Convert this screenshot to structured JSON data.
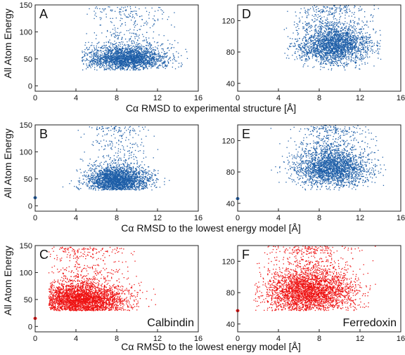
{
  "colors": {
    "blue": "#1f5fa8",
    "red": "#ee1111",
    "axis": "#222222"
  },
  "figure": {
    "ylabel": "All Atom Energy",
    "row_xlabels": [
      "Cα RMSD to experimental structure [Å]",
      "Cα RMSD to the lowest energy model [Å]",
      "Cα RMSD to the lowest energy model [Å]"
    ],
    "protein_labels": {
      "left": "Calbindin",
      "right": "Ferredoxin"
    }
  },
  "chart_data": [
    {
      "panel": "A",
      "type": "scatter",
      "color": "blue",
      "xlim": [
        0,
        16
      ],
      "ylim": [
        -10,
        150
      ],
      "xticks": [
        0,
        4,
        8,
        12,
        16
      ],
      "yticks": [
        0,
        50,
        100,
        150
      ],
      "cloud": {
        "x_center": 9.0,
        "x_sd": 1.9,
        "x_range": [
          4.5,
          15.5
        ],
        "y_base": 42,
        "y_spread": 22,
        "y_tail_max": 148,
        "n": 2600
      },
      "reference_point": null,
      "protein_label": null
    },
    {
      "panel": "D",
      "type": "scatter",
      "color": "blue",
      "xlim": [
        0,
        16
      ],
      "ylim": [
        30,
        140
      ],
      "xticks": [
        0,
        4,
        8,
        12,
        16
      ],
      "yticks": [
        40,
        80,
        120
      ],
      "cloud": {
        "x_center": 9.5,
        "x_sd": 1.8,
        "x_range": [
          4.5,
          14
        ],
        "y_base": 78,
        "y_spread": 26,
        "y_tail_max": 140,
        "n": 2600
      },
      "reference_point": null,
      "protein_label": null
    },
    {
      "panel": "B",
      "type": "scatter",
      "color": "blue",
      "xlim": [
        0,
        16
      ],
      "ylim": [
        -10,
        150
      ],
      "xticks": [
        0,
        4,
        8,
        12,
        16
      ],
      "yticks": [
        0,
        50,
        100,
        150
      ],
      "cloud": {
        "x_center": 8.0,
        "x_sd": 1.5,
        "x_range": [
          2.5,
          14.5
        ],
        "y_base": 38,
        "y_spread": 24,
        "y_tail_max": 148,
        "n": 2600
      },
      "reference_point": {
        "x": 0,
        "y": 15
      },
      "protein_label": null
    },
    {
      "panel": "E",
      "type": "scatter",
      "color": "blue",
      "xlim": [
        0,
        16
      ],
      "ylim": [
        30,
        140
      ],
      "xticks": [
        0,
        4,
        8,
        12,
        16
      ],
      "yticks": [
        40,
        80,
        120
      ],
      "cloud": {
        "x_center": 9.2,
        "x_sd": 1.8,
        "x_range": [
          2.0,
          14.5
        ],
        "y_base": 74,
        "y_spread": 26,
        "y_tail_max": 140,
        "n": 2600
      },
      "reference_point": {
        "x": 0,
        "y": 46
      },
      "protein_label": null
    },
    {
      "panel": "C",
      "type": "scatter",
      "color": "red",
      "xlim": [
        0,
        16
      ],
      "ylim": [
        -10,
        150
      ],
      "xticks": [
        0,
        4,
        8,
        12,
        16
      ],
      "yticks": [
        0,
        50,
        100,
        150
      ],
      "cloud": {
        "x_center": 4.5,
        "x_sd": 2.2,
        "x_range": [
          1.3,
          13
        ],
        "y_base": 38,
        "y_spread": 30,
        "y_tail_max": 148,
        "n": 3200
      },
      "reference_point": {
        "x": 0,
        "y": 15
      },
      "protein_label": "left"
    },
    {
      "panel": "F",
      "type": "scatter",
      "color": "red",
      "xlim": [
        0,
        16
      ],
      "ylim": [
        30,
        140
      ],
      "xticks": [
        0,
        4,
        8,
        12,
        16
      ],
      "yticks": [
        40,
        80,
        120
      ],
      "cloud": {
        "x_center": 7.0,
        "x_sd": 2.2,
        "x_range": [
          1.5,
          13.5
        ],
        "y_base": 70,
        "y_spread": 28,
        "y_tail_max": 140,
        "n": 3200
      },
      "reference_point": {
        "x": 0,
        "y": 57
      },
      "protein_label": "right"
    }
  ]
}
